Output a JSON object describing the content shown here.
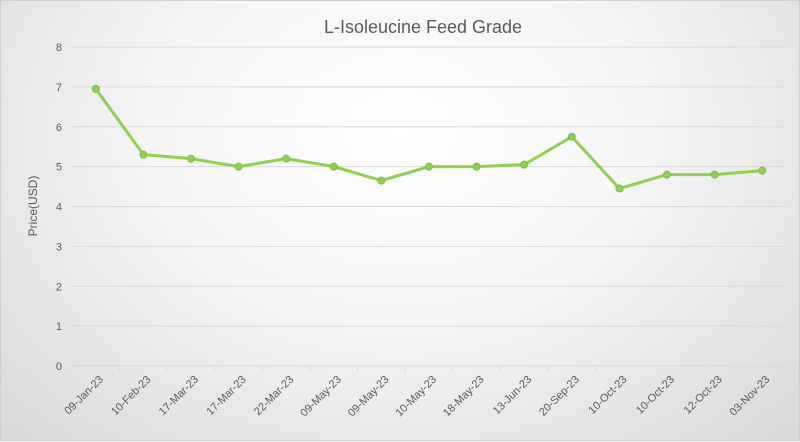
{
  "chart_data": {
    "type": "line",
    "title": "L-Isoleucine Feed Grade",
    "xlabel": "",
    "ylabel": "Price(USD)",
    "ylim": [
      0,
      8
    ],
    "yticks": [
      0,
      1,
      2,
      3,
      4,
      5,
      6,
      7,
      8
    ],
    "grid": true,
    "categories": [
      "09-Jan-23",
      "10-Feb-23",
      "17-Mar-23",
      "17-Mar-23",
      "22-Mar-23",
      "09-May-23",
      "09-May-23",
      "10-May-23",
      "18-May-23",
      "13-Jun-23",
      "20-Sep-23",
      "10-Oct-23",
      "10-Oct-23",
      "12-Oct-23",
      "03-Nov-23"
    ],
    "values": [
      6.95,
      5.3,
      5.2,
      5.0,
      5.2,
      5.0,
      4.65,
      5.0,
      5.0,
      5.05,
      5.75,
      4.45,
      4.8,
      4.8,
      4.9
    ],
    "line_color": "#8fd14f"
  }
}
